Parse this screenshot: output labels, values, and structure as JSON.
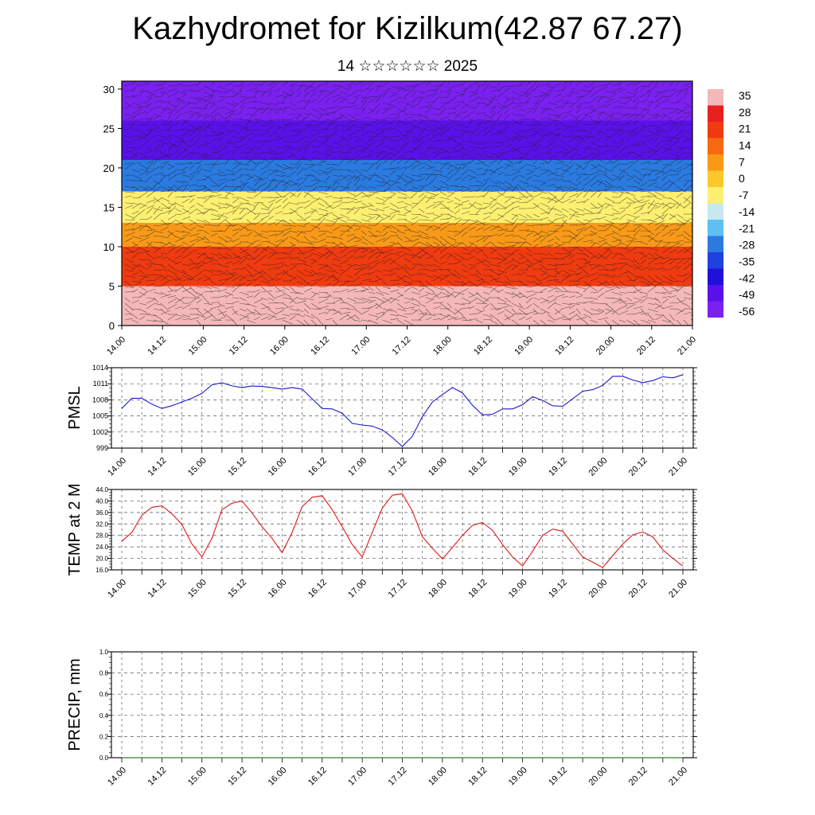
{
  "title": "Kazhydromet for Kizilkum(42.87 67.27)",
  "subtitle": "14 ☆☆☆☆☆☆ 2025",
  "chart_data": [
    {
      "type": "heatmap",
      "title": "Kazhydromet for Kizilkum(42.87 67.27)",
      "subtitle": "14 ☆☆☆☆☆☆ 2025",
      "ylim": [
        0,
        31
      ],
      "yticks": [
        0,
        5,
        10,
        15,
        20,
        25,
        30
      ],
      "xticks": [
        "14.00",
        "14.12",
        "15.00",
        "15.12",
        "16.00",
        "16.12",
        "17.00",
        "17.12",
        "18.00",
        "18.12",
        "19.00",
        "19.12",
        "20.00",
        "20.12",
        "21.00"
      ],
      "colorbar": {
        "labels": [
          "35",
          "28",
          "21",
          "14",
          "7",
          "0",
          "-7",
          "-14",
          "-21",
          "-28",
          "-35",
          "-42",
          "-49",
          "-56"
        ],
        "colors": [
          "#f5b8b8",
          "#e82020",
          "#f03a10",
          "#f56a10",
          "#f89a18",
          "#fbc82a",
          "#fdf070",
          "#c8e8f0",
          "#5ec0f0",
          "#2a7ae0",
          "#2040e0",
          "#2010d8",
          "#5a10e8",
          "#7a20f0"
        ]
      },
      "bands": [
        {
          "from": 0,
          "to": 5,
          "value": 35
        },
        {
          "from": 5,
          "to": 10,
          "value": 21
        },
        {
          "from": 10,
          "to": 13,
          "value": 7
        },
        {
          "from": 13,
          "to": 17,
          "value": -7
        },
        {
          "from": 17,
          "to": 21,
          "value": -28
        },
        {
          "from": 21,
          "to": 26,
          "value": -49
        },
        {
          "from": 26,
          "to": 31,
          "value": -56
        }
      ],
      "grid": false,
      "overlay": "wind vectors"
    },
    {
      "type": "line",
      "ylabel": "PMSL",
      "ylim": [
        999,
        1014
      ],
      "yticks": [
        999,
        1002,
        1005,
        1008,
        1011,
        1014
      ],
      "xticks": [
        "14.00",
        "14.12",
        "15.00",
        "15.12",
        "16.00",
        "16.12",
        "17.00",
        "17.12",
        "18.00",
        "18.12",
        "19.00",
        "19.12",
        "20.00",
        "20.12",
        "21.00"
      ],
      "grid": true,
      "color": "#1a1acc",
      "values": [
        1006.4,
        1008.3,
        1008.3,
        1007.2,
        1006.4,
        1006.9,
        1007.6,
        1008.3,
        1009.2,
        1010.8,
        1011.2,
        1010.6,
        1010.3,
        1010.6,
        1010.5,
        1010.3,
        1010.0,
        1010.3,
        1010.0,
        1008.2,
        1006.4,
        1006.3,
        1005.5,
        1003.6,
        1003.3,
        1003.1,
        1002.4,
        1001.0,
        999.3,
        1001.2,
        1004.9,
        1007.6,
        1009.0,
        1010.3,
        1009.3,
        1007.0,
        1005.2,
        1005.3,
        1006.3,
        1006.3,
        1007.1,
        1008.6,
        1007.9,
        1006.9,
        1006.8,
        1008.2,
        1009.6,
        1009.9,
        1010.7,
        1012.4,
        1012.4,
        1011.7,
        1011.2,
        1011.6,
        1012.3,
        1012.1,
        1012.7
      ]
    },
    {
      "type": "line",
      "ylabel": "TEMP at 2 M",
      "ylim": [
        16,
        44
      ],
      "yticks": [
        "16.0",
        "20.0",
        "24.0",
        "28.0",
        "32.0",
        "36.0",
        "40.0",
        "44.0"
      ],
      "xticks": [
        "14.00",
        "14.12",
        "15.00",
        "15.12",
        "16.00",
        "16.12",
        "17.00",
        "17.12",
        "18.00",
        "18.12",
        "19.00",
        "19.12",
        "20.00",
        "20.12",
        "21.00"
      ],
      "grid": true,
      "color": "#e01818",
      "values": [
        26.0,
        29.0,
        35.0,
        37.8,
        38.3,
        35.6,
        31.8,
        25.0,
        20.5,
        27.0,
        37.0,
        39.2,
        40.0,
        35.8,
        31.0,
        27.0,
        22.0,
        29.0,
        38.0,
        41.3,
        41.8,
        37.0,
        31.0,
        24.8,
        20.5,
        29.0,
        37.5,
        42.0,
        42.5,
        36.5,
        27.5,
        23.5,
        19.8,
        23.8,
        28.0,
        31.5,
        32.5,
        29.8,
        24.8,
        20.5,
        17.4,
        22.5,
        28.0,
        30.2,
        29.5,
        25.0,
        20.5,
        18.7,
        16.8,
        21.0,
        25.0,
        28.2,
        29.2,
        27.5,
        23.0,
        20.0,
        17.3
      ]
    },
    {
      "type": "line",
      "ylabel": "PRECIP, mm",
      "ylim": [
        0.0,
        1.0
      ],
      "yticks": [
        "0.0",
        "0.2",
        "0.4",
        "0.6",
        "0.8",
        "1.0"
      ],
      "xticks": [
        "14.00",
        "14.12",
        "15.00",
        "15.12",
        "16.00",
        "16.12",
        "17.00",
        "17.12",
        "18.00",
        "18.12",
        "19.00",
        "19.12",
        "20.00",
        "20.12",
        "21.00"
      ],
      "grid": true,
      "color": "#1a7a1a",
      "values": [
        0,
        0,
        0,
        0,
        0,
        0,
        0,
        0,
        0,
        0,
        0,
        0,
        0,
        0,
        0,
        0,
        0,
        0,
        0,
        0,
        0,
        0,
        0,
        0,
        0,
        0,
        0,
        0,
        0,
        0,
        0,
        0,
        0,
        0,
        0,
        0,
        0,
        0,
        0,
        0,
        0,
        0,
        0,
        0,
        0,
        0,
        0,
        0,
        0,
        0,
        0,
        0,
        0,
        0,
        0,
        0,
        0
      ]
    }
  ]
}
